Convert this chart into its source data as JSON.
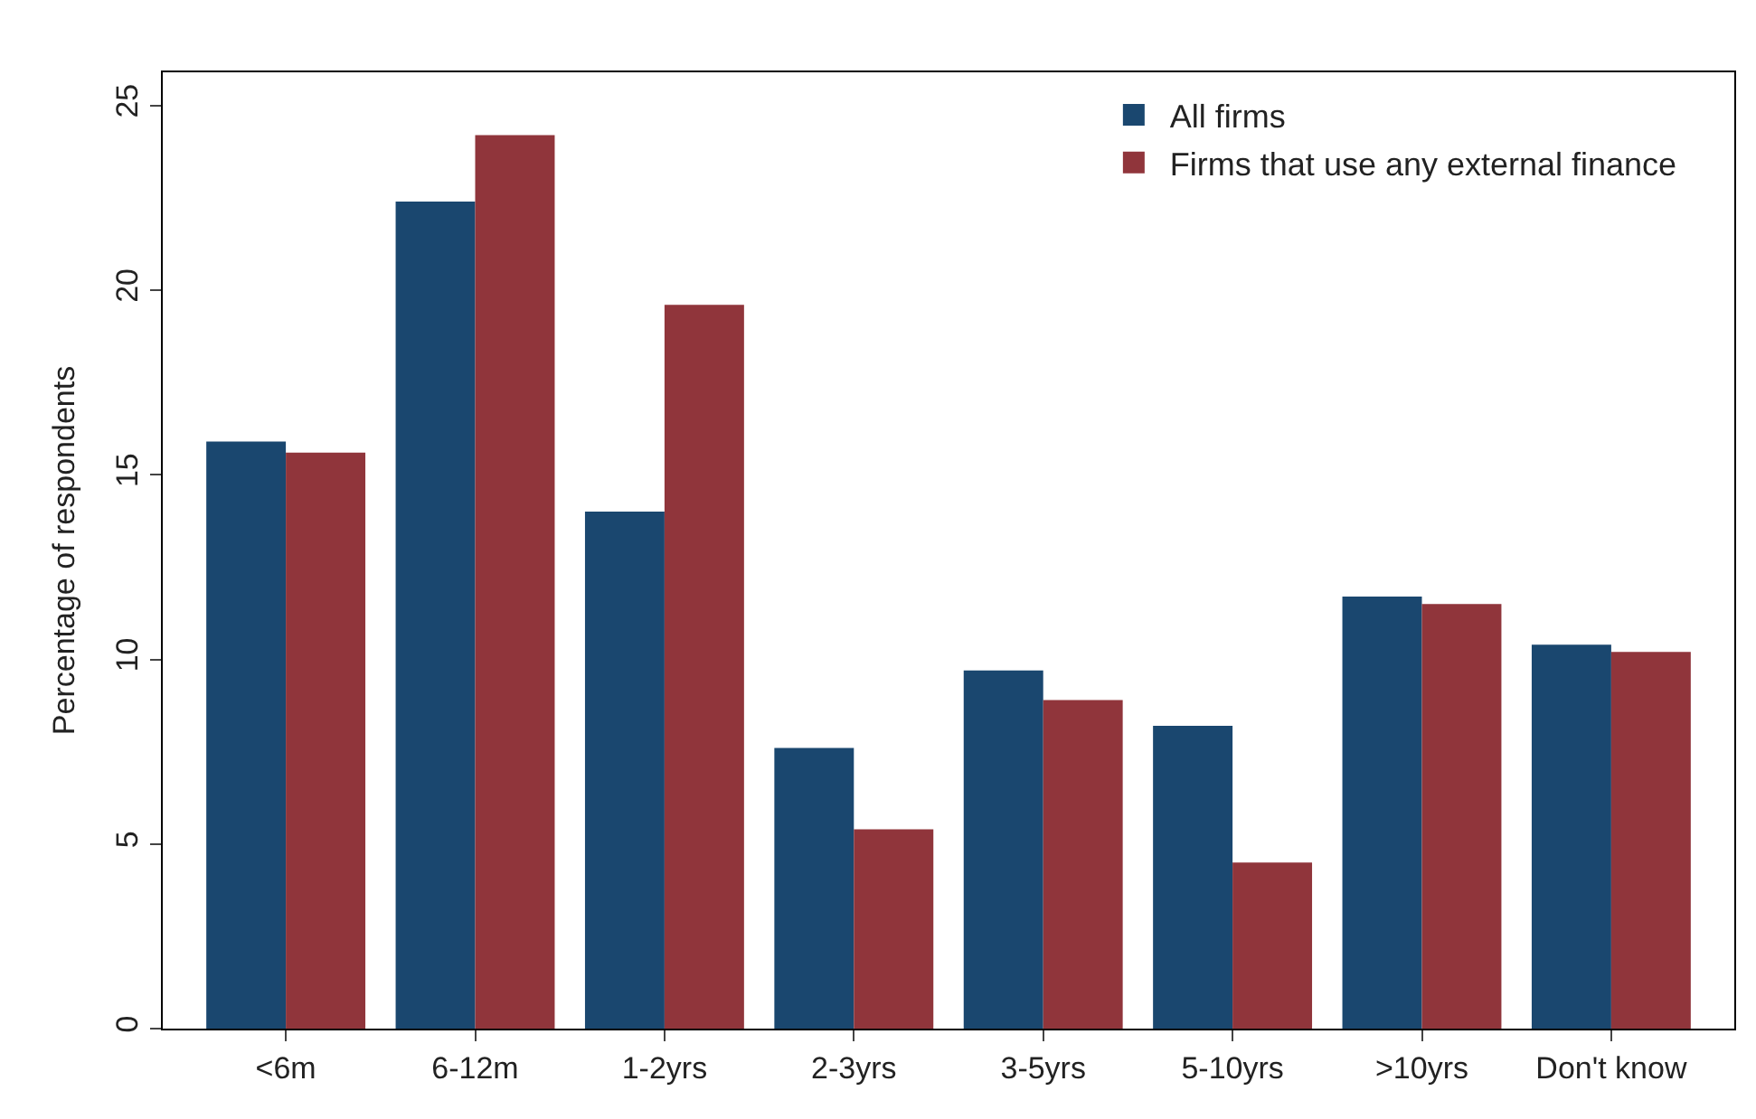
{
  "chart_data": {
    "type": "bar",
    "ylabel": "Percentage of respondents",
    "categories": [
      "<6m",
      "6-12m",
      "1-2yrs",
      "2-3yrs",
      "3-5yrs",
      "5-10yrs",
      ">10yrs",
      "Don't know"
    ],
    "series": [
      {
        "name": "All firms",
        "color": "#1a476f",
        "values": [
          15.9,
          22.4,
          14.0,
          7.6,
          9.7,
          8.2,
          11.7,
          10.4
        ]
      },
      {
        "name": "Firms that use any external finance",
        "color": "#90353b",
        "values": [
          15.6,
          24.2,
          19.6,
          5.4,
          8.9,
          4.5,
          11.5,
          10.2
        ]
      }
    ],
    "ylim": [
      0,
      25.9
    ],
    "yticks": [
      0,
      5,
      10,
      15,
      20,
      25
    ],
    "legend": "top right"
  }
}
